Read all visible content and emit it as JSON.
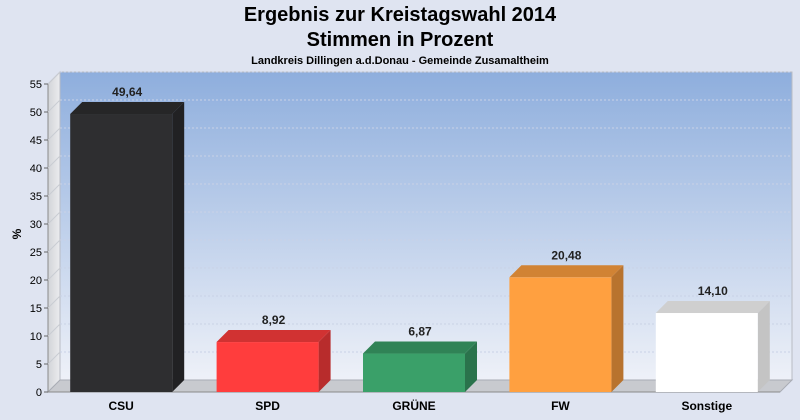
{
  "chart_data": {
    "type": "bar",
    "title": "Ergebnis zur Kreistagswahl 2014",
    "subtitle": "Stimmen in Prozent",
    "caption": "Landkreis Dillingen a.d.Donau - Gemeinde Zusamaltheim",
    "ylabel": "%",
    "xlabel": "",
    "ylim": [
      0,
      55
    ],
    "yticks": [
      0,
      5,
      10,
      15,
      20,
      25,
      30,
      35,
      40,
      45,
      50,
      55
    ],
    "categories": [
      "CSU",
      "SPD",
      "GRÜNE",
      "FW",
      "Sonstige"
    ],
    "values": [
      49.64,
      8.92,
      6.87,
      20.48,
      14.1
    ],
    "value_labels": [
      "49,64",
      "8,92",
      "6,87",
      "20,48",
      "14,10"
    ],
    "colors": [
      "#2e2e30",
      "#ff3d3d",
      "#3aa069",
      "#ffa040",
      "#ffffff"
    ],
    "grid": true,
    "legend": "none"
  }
}
